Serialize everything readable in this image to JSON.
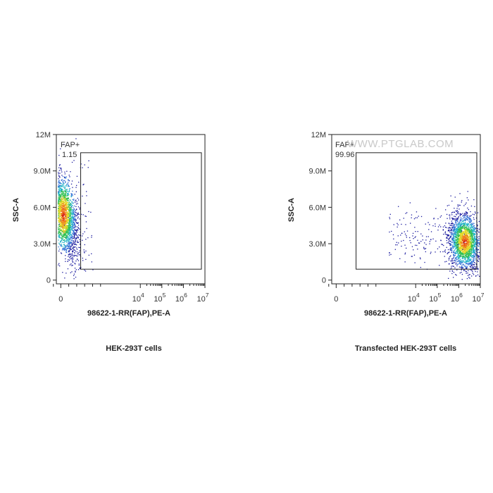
{
  "chart_data": [
    {
      "type": "scatter",
      "title": "",
      "caption": "HEK-293T cells",
      "xlabel": "98622-1-RR(FAP),PE-A",
      "ylabel": "SSC-A",
      "x_scale": "biexponential",
      "x_ticks": [
        {
          "value": 0,
          "base": "0",
          "exp": ""
        },
        {
          "value": 10000,
          "base": "10",
          "exp": "4"
        },
        {
          "value": 100000,
          "base": "10",
          "exp": "5"
        },
        {
          "value": 1000000,
          "base": "10",
          "exp": "6"
        },
        {
          "value": 10000000,
          "base": "10",
          "exp": "7"
        }
      ],
      "y_ticks": [
        {
          "value": 0,
          "label": "0"
        },
        {
          "value": 3000000,
          "label": "3.0M"
        },
        {
          "value": 6000000,
          "label": "6.0M"
        },
        {
          "value": 9000000,
          "label": "9.0M"
        },
        {
          "value": 12000000,
          "label": "12M"
        }
      ],
      "ylim": [
        0,
        12000000
      ],
      "gate": {
        "name": "FAP+",
        "percent": "1.15",
        "x_range": [
          2500,
          9000000
        ],
        "y_range": [
          900000,
          10500000
        ]
      },
      "population": {
        "x_center": 300,
        "y_center": 5400000,
        "events": 2400
      }
    },
    {
      "type": "scatter",
      "title": "",
      "caption": "Transfected HEK-293T cells",
      "xlabel": "98622-1-RR(FAP),PE-A",
      "ylabel": "SSC-A",
      "x_scale": "biexponential",
      "x_ticks": [
        {
          "value": 0,
          "base": "0",
          "exp": ""
        },
        {
          "value": 10000,
          "base": "10",
          "exp": "4"
        },
        {
          "value": 100000,
          "base": "10",
          "exp": "5"
        },
        {
          "value": 1000000,
          "base": "10",
          "exp": "6"
        },
        {
          "value": 10000000,
          "base": "10",
          "exp": "7"
        }
      ],
      "y_ticks": [
        {
          "value": 0,
          "label": "0"
        },
        {
          "value": 3000000,
          "label": "3.0M"
        },
        {
          "value": 6000000,
          "label": "6.0M"
        },
        {
          "value": 9000000,
          "label": "9.0M"
        },
        {
          "value": 12000000,
          "label": "12M"
        }
      ],
      "ylim": [
        0,
        12000000
      ],
      "gate": {
        "name": "FAP+",
        "percent": "99.96",
        "x_range": [
          2500,
          9000000
        ],
        "y_range": [
          900000,
          10500000
        ]
      },
      "population": {
        "x_center": 1800000,
        "y_center": 3200000,
        "events": 2400
      }
    }
  ],
  "watermark": "WWW.PTGLAB.COM",
  "colors": {
    "density": [
      "#1a1a9e",
      "#2f6fd6",
      "#21b4c8",
      "#2fbf52",
      "#e3d828",
      "#f07a1c",
      "#d62318"
    ],
    "axis": "#222222"
  }
}
